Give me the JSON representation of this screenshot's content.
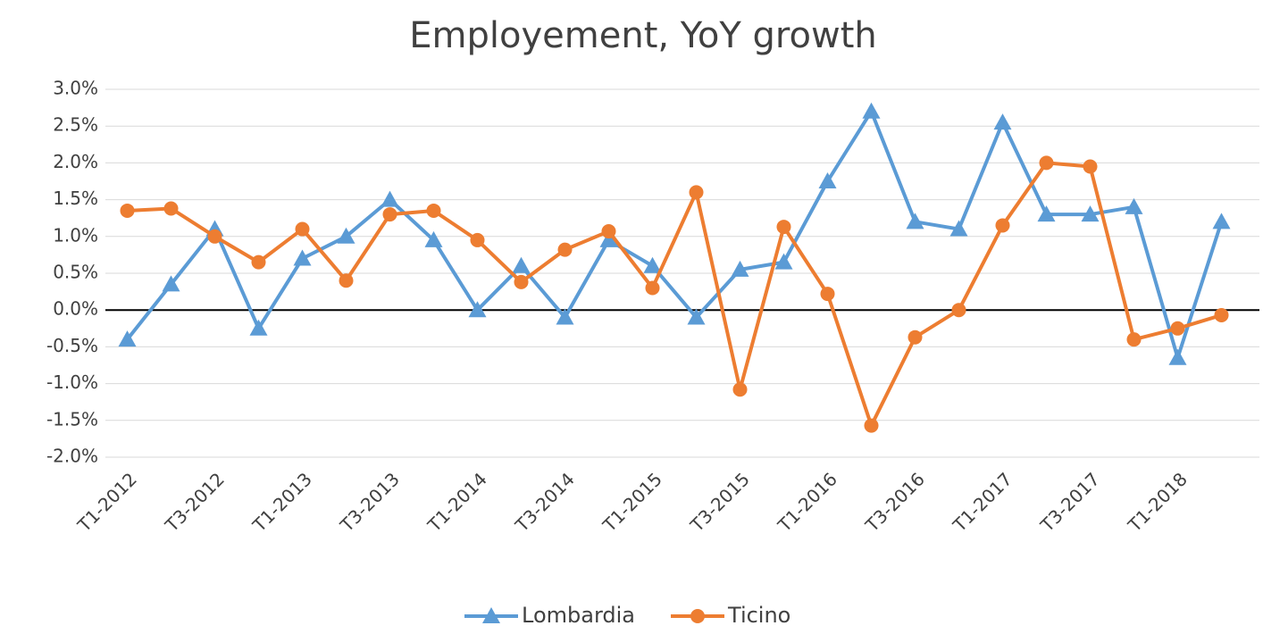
{
  "chart_data": {
    "type": "line",
    "title": "Employement, YoY growth",
    "categories": [
      "T1-2012",
      null,
      "T3-2012",
      null,
      "T1-2013",
      null,
      "T3-2013",
      null,
      "T1-2014",
      null,
      "T3-2014",
      null,
      "T1-2015",
      null,
      "T3-2015",
      null,
      "T1-2016",
      null,
      "T3-2016",
      null,
      "T1-2017",
      null,
      "T3-2017",
      null,
      "T1-2018",
      null
    ],
    "series": [
      {
        "name": "Lombardia",
        "color": "#5b9bd5",
        "marker": "triangle",
        "values": [
          -0.4,
          0.35,
          1.1,
          -0.25,
          0.7,
          1.0,
          1.5,
          0.95,
          0.0,
          0.6,
          -0.1,
          0.95,
          0.6,
          -0.1,
          0.55,
          0.65,
          1.75,
          2.7,
          1.2,
          1.1,
          2.55,
          1.3,
          1.3,
          1.4,
          -0.65,
          1.2
        ]
      },
      {
        "name": "Ticino",
        "color": "#ed7d31",
        "marker": "circle",
        "values": [
          1.35,
          1.38,
          1.0,
          0.65,
          1.1,
          0.4,
          1.3,
          1.35,
          0.95,
          0.38,
          0.82,
          1.07,
          0.3,
          1.6,
          -1.08,
          1.13,
          0.22,
          -1.57,
          -0.37,
          0.0,
          1.15,
          2.0,
          1.95,
          -0.4,
          -0.25,
          -0.07
        ]
      }
    ],
    "ylim": [
      -2,
      3
    ],
    "yticks": [
      {
        "value": -2,
        "label": "-2.0%"
      },
      {
        "value": -1.5,
        "label": "-1.5%"
      },
      {
        "value": -1,
        "label": "-1.0%"
      },
      {
        "value": -0.5,
        "label": "-0.5%"
      },
      {
        "value": 0,
        "label": "0.0%"
      },
      {
        "value": 0.5,
        "label": "0.5%"
      },
      {
        "value": 1,
        "label": "1.0%"
      },
      {
        "value": 1.5,
        "label": "1.5%"
      },
      {
        "value": 2,
        "label": "2.0%"
      },
      {
        "value": 2.5,
        "label": "2.5%"
      },
      {
        "value": 3,
        "label": "3.0%"
      }
    ],
    "grid": true,
    "legend": "bottom"
  }
}
